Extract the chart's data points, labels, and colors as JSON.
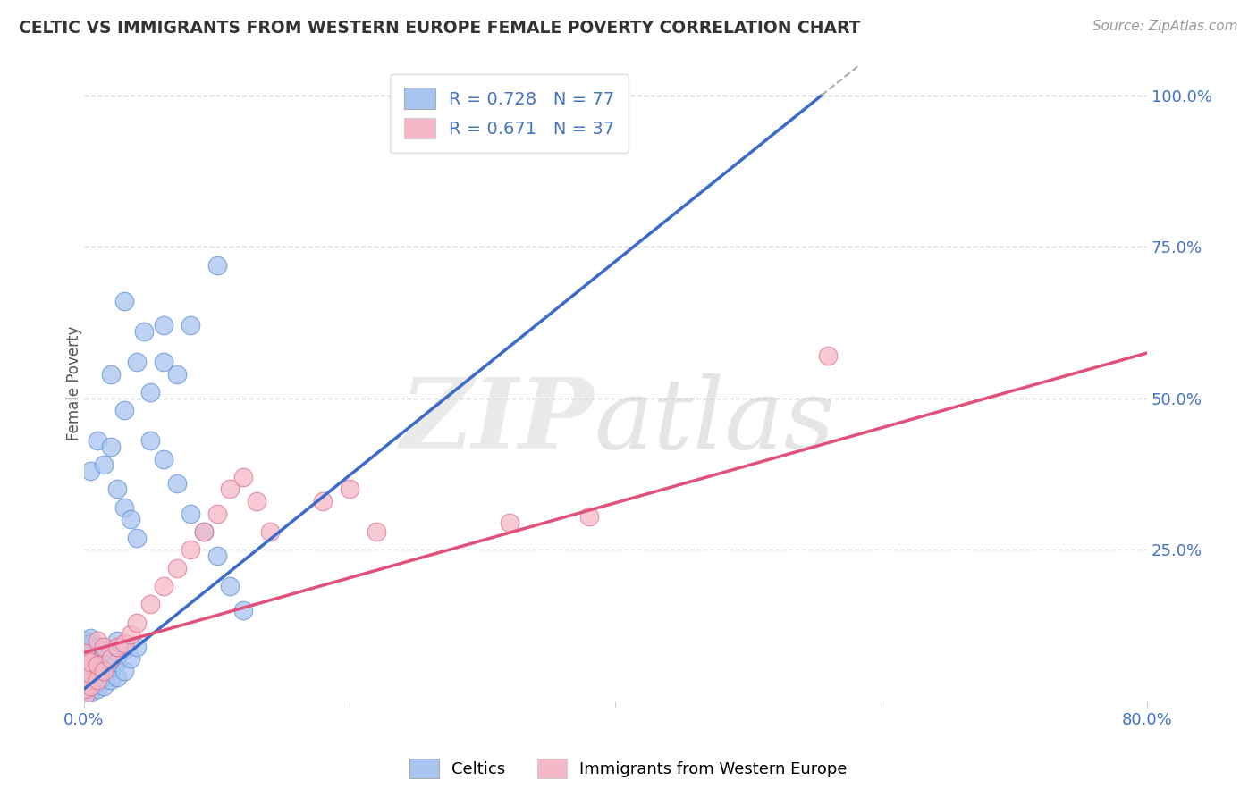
{
  "title": "CELTIC VS IMMIGRANTS FROM WESTERN EUROPE FEMALE POVERTY CORRELATION CHART",
  "source": "Source: ZipAtlas.com",
  "ylabel": "Female Poverty",
  "xmin": 0.0,
  "xmax": 0.8,
  "ymin": 0.0,
  "ymax": 1.05,
  "ytick_right_labels": [
    "100.0%",
    "75.0%",
    "50.0%",
    "25.0%"
  ],
  "ytick_right_values": [
    1.0,
    0.75,
    0.5,
    0.25
  ],
  "gridline_color": "#cccccc",
  "background_color": "#ffffff",
  "celtics_color": "#a8c4f0",
  "celtics_edge_color": "#6090d0",
  "celtics_line_color": "#3a6bc9",
  "immigrants_color": "#f5b8c8",
  "immigrants_edge_color": "#e07090",
  "immigrants_line_color": "#e0507a",
  "legend_R_celtic": "0.728",
  "legend_N_celtic": "77",
  "legend_R_immigrant": "0.671",
  "legend_N_immigrant": "37",
  "legend_label_celtic": "Celtics",
  "legend_label_immigrant": "Immigrants from Western Europe",
  "celtics_line_x0": 0.0,
  "celtics_line_y0": 0.02,
  "celtics_line_x1": 0.555,
  "celtics_line_y1": 1.0,
  "immigrants_line_x0": 0.0,
  "immigrants_line_y0": 0.08,
  "immigrants_line_x1": 0.8,
  "immigrants_line_y1": 0.575,
  "celtics_x": [
    0.001,
    0.001,
    0.001,
    0.001,
    0.001,
    0.001,
    0.001,
    0.001,
    0.001,
    0.001,
    0.001,
    0.001,
    0.001,
    0.001,
    0.001,
    0.001,
    0.001,
    0.001,
    0.001,
    0.001,
    0.005,
    0.005,
    0.005,
    0.005,
    0.005,
    0.005,
    0.005,
    0.005,
    0.005,
    0.005,
    0.01,
    0.01,
    0.01,
    0.01,
    0.01,
    0.01,
    0.015,
    0.015,
    0.015,
    0.015,
    0.02,
    0.02,
    0.02,
    0.025,
    0.025,
    0.025,
    0.03,
    0.03,
    0.035,
    0.04,
    0.005,
    0.01,
    0.015,
    0.02,
    0.025,
    0.03,
    0.035,
    0.04,
    0.05,
    0.06,
    0.07,
    0.08,
    0.09,
    0.1,
    0.11,
    0.12,
    0.02,
    0.03,
    0.04,
    0.05,
    0.06,
    0.07,
    0.03,
    0.045,
    0.06,
    0.08,
    0.1
  ],
  "celtics_y": [
    0.005,
    0.01,
    0.015,
    0.02,
    0.025,
    0.03,
    0.035,
    0.04,
    0.045,
    0.05,
    0.055,
    0.06,
    0.065,
    0.07,
    0.075,
    0.08,
    0.085,
    0.09,
    0.095,
    0.1,
    0.015,
    0.025,
    0.035,
    0.045,
    0.055,
    0.065,
    0.075,
    0.085,
    0.095,
    0.105,
    0.02,
    0.03,
    0.045,
    0.06,
    0.075,
    0.09,
    0.025,
    0.04,
    0.06,
    0.08,
    0.035,
    0.055,
    0.08,
    0.04,
    0.065,
    0.1,
    0.05,
    0.085,
    0.07,
    0.09,
    0.38,
    0.43,
    0.39,
    0.42,
    0.35,
    0.32,
    0.3,
    0.27,
    0.43,
    0.4,
    0.36,
    0.31,
    0.28,
    0.24,
    0.19,
    0.15,
    0.54,
    0.48,
    0.56,
    0.51,
    0.56,
    0.54,
    0.66,
    0.61,
    0.62,
    0.62,
    0.72
  ],
  "immigrants_x": [
    0.001,
    0.001,
    0.001,
    0.001,
    0.001,
    0.001,
    0.001,
    0.001,
    0.005,
    0.005,
    0.005,
    0.01,
    0.01,
    0.01,
    0.015,
    0.015,
    0.02,
    0.025,
    0.03,
    0.035,
    0.04,
    0.05,
    0.06,
    0.07,
    0.08,
    0.09,
    0.1,
    0.11,
    0.12,
    0.13,
    0.14,
    0.18,
    0.2,
    0.22,
    0.32,
    0.38,
    0.56
  ],
  "immigrants_y": [
    0.01,
    0.02,
    0.03,
    0.04,
    0.05,
    0.06,
    0.07,
    0.08,
    0.025,
    0.045,
    0.065,
    0.035,
    0.06,
    0.1,
    0.05,
    0.09,
    0.07,
    0.09,
    0.095,
    0.11,
    0.13,
    0.16,
    0.19,
    0.22,
    0.25,
    0.28,
    0.31,
    0.35,
    0.37,
    0.33,
    0.28,
    0.33,
    0.35,
    0.28,
    0.295,
    0.305,
    0.57
  ]
}
